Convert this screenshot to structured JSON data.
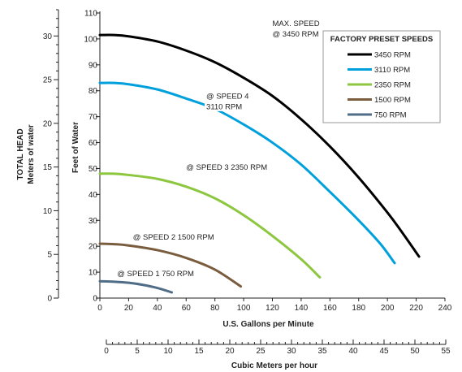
{
  "chart_data": {
    "type": "line",
    "xlabel": "U.S. Gallons per Minute",
    "ylabel": "Feet of Water",
    "xlim": [
      0,
      240
    ],
    "ylim": [
      0,
      110
    ],
    "x_ticks": [
      0,
      20,
      40,
      60,
      80,
      100,
      120,
      140,
      160,
      180,
      200,
      220,
      240
    ],
    "y_ticks": [
      0,
      10,
      20,
      30,
      40,
      50,
      60,
      70,
      80,
      90,
      100,
      110
    ],
    "grid": false,
    "left_axis": {
      "label_line1": "TOTAL HEAD",
      "label_line2": "Meters of water",
      "range": [
        0,
        33
      ],
      "ticks": [
        0,
        5,
        10,
        15,
        20,
        25,
        30
      ]
    },
    "bottom_axis": {
      "label": "Cubic Meters per hour",
      "range": [
        0,
        55
      ],
      "ticks": [
        0,
        5,
        10,
        15,
        20,
        25,
        30,
        35,
        40,
        45,
        50,
        55
      ]
    },
    "legend": {
      "title": "FACTORY PRESET SPEEDS",
      "placement": "top-right"
    },
    "series": [
      {
        "name": "3450 RPM",
        "color": "#000000",
        "x": [
          0,
          10,
          20,
          40,
          60,
          80,
          100,
          120,
          140,
          160,
          180,
          200,
          210,
          222
        ],
        "y": [
          101.5,
          101.5,
          101,
          99,
          95.5,
          91,
          85,
          78,
          69,
          58.5,
          46.5,
          33,
          25.5,
          16
        ]
      },
      {
        "name": "3110 RPM",
        "color": "#00a0dc",
        "x": [
          0,
          10,
          20,
          40,
          60,
          80,
          100,
          120,
          140,
          160,
          180,
          195,
          205
        ],
        "y": [
          83,
          83,
          82.5,
          80.5,
          77,
          73,
          67,
          60,
          51.5,
          41,
          30,
          21,
          13.5
        ]
      },
      {
        "name": "2350 RPM",
        "color": "#8dc63f",
        "x": [
          0,
          10,
          20,
          40,
          60,
          80,
          100,
          120,
          140,
          153
        ],
        "y": [
          48,
          48,
          47.5,
          46,
          43,
          38.5,
          32,
          24,
          15,
          8
        ]
      },
      {
        "name": "1500 RPM",
        "color": "#7a5c3e",
        "x": [
          0,
          10,
          20,
          40,
          60,
          80,
          98
        ],
        "y": [
          21,
          20.8,
          20.3,
          18.5,
          15.5,
          11,
          4.5
        ]
      },
      {
        "name": "750 RPM",
        "color": "#4f6d86",
        "x": [
          0,
          10,
          20,
          30,
          40,
          50
        ],
        "y": [
          6.5,
          6.3,
          5.9,
          5.1,
          3.9,
          2.2
        ]
      }
    ],
    "annotations": [
      {
        "lines": [
          "MAX. SPEED",
          "@ 3450 RPM"
        ],
        "x": 120,
        "y": 105
      },
      {
        "lines": [
          "@ SPEED 4",
          "3110 RPM"
        ],
        "x": 74,
        "y": 77
      },
      {
        "lines": [
          "@ SPEED 3 2350 RPM"
        ],
        "x": 60,
        "y": 49.5
      },
      {
        "lines": [
          "@ SPEED 2 1500 RPM"
        ],
        "x": 23,
        "y": 22.5
      },
      {
        "lines": [
          "@ SPEED 1 750 RPM"
        ],
        "x": 12,
        "y": 8.5
      }
    ]
  }
}
